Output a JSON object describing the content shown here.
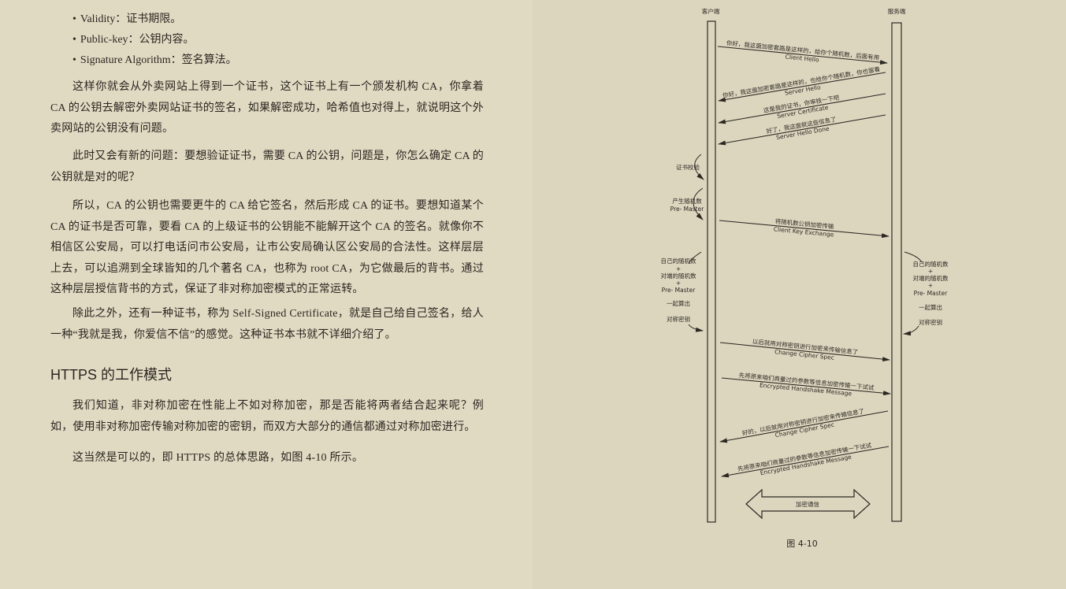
{
  "left_page": {
    "bullets": [
      "Validity：证书期限。",
      "Public-key：公钥内容。",
      "Signature Algorithm：签名算法。"
    ],
    "paragraphs": [
      "这样你就会从外卖网站上得到一个证书，这个证书上有一个颁发机构 CA，你拿着 CA 的公钥去解密外卖网站证书的签名，如果解密成功，哈希值也对得上，就说明这个外卖网站的公钥没有问题。",
      "此时又会有新的问题：要想验证证书，需要 CA 的公钥，问题是，你怎么确定 CA 的公钥就是对的呢？",
      "所以，CA 的公钥也需要更牛的 CA 给它签名，然后形成 CA 的证书。要想知道某个 CA 的证书是否可靠，要看 CA 的上级证书的公钥能不能解开这个 CA 的签名。就像你不相信区公安局，可以打电话问市公安局，让市公安局确认区公安局的合法性。这样层层上去，可以追溯到全球皆知的几个著名 CA，也称为 root CA，为它做最后的背书。通过这种层层授信背书的方式，保证了非对称加密模式的正常运转。",
      "除此之外，还有一种证书，称为 Self-Signed Certificate，就是自己给自己签名，给人一种“我就是我，你爱信不信”的感觉。这种证书本书就不详细介绍了。"
    ],
    "heading": "HTTPS 的工作模式",
    "paragraphs2": [
      "我们知道，非对称加密在性能上不如对称加密，那是否能将两者结合起来呢？例如，使用非对称加密传输对称加密的密钥，而双方大部分的通信都通过对称加密进行。",
      "这当然是可以的，即 HTTPS 的总体思路，如图 4-10 所示。"
    ]
  },
  "diagram": {
    "client_label": "客户端",
    "server_label": "服务端",
    "messages": [
      {
        "cn": "你好，我这面加密套路是这样的，给你个随机数，后面有用",
        "en": "Client Hello"
      },
      {
        "cn": "你好，我这面加密套路是这样的，也给你个随机数，你也留着",
        "en": "Server Hello"
      },
      {
        "cn": "这是我的证书，你审核一下吧",
        "en": "Server Certificate"
      },
      {
        "cn": "好了，我这面就这些信息了",
        "en": "Server Hello Done"
      },
      {
        "cn": "将随机数公钥加密传输",
        "en": "Client Key Exchange"
      },
      {
        "cn": "以后就用对称密钥进行加密来传输信息了",
        "en": "Change Cipher Spec"
      },
      {
        "cn": "先将原来咱们商量过的参数等信息加密传输一下试试",
        "en": "Encrypted Handshake Message"
      },
      {
        "cn": "好的，以后就用对称密钥进行加密来传输信息了",
        "en": "Change Cipher Spec"
      },
      {
        "cn": "先将原来咱们商量过的参数等信息加密传输一下试试",
        "en": "Encrypted Handshake Message"
      }
    ],
    "client_notes": {
      "cert_check": "证书校验",
      "gen_random": [
        "产生随机数",
        "Pre- Master"
      ],
      "compute": [
        "自己的随机数",
        "+",
        "对端的随机数",
        "+",
        "Pre- Master",
        "一起算出",
        "对称密钥"
      ]
    },
    "server_notes": {
      "compute": [
        "自己的随机数",
        "+",
        "对端的随机数",
        "+",
        "Pre- Master",
        "一起算出",
        "对称密钥"
      ]
    },
    "encrypted_comm": "加密通信",
    "caption": "图 4-10"
  },
  "colors": {
    "paper": "#e1dac3",
    "ink": "#2a2620"
  }
}
